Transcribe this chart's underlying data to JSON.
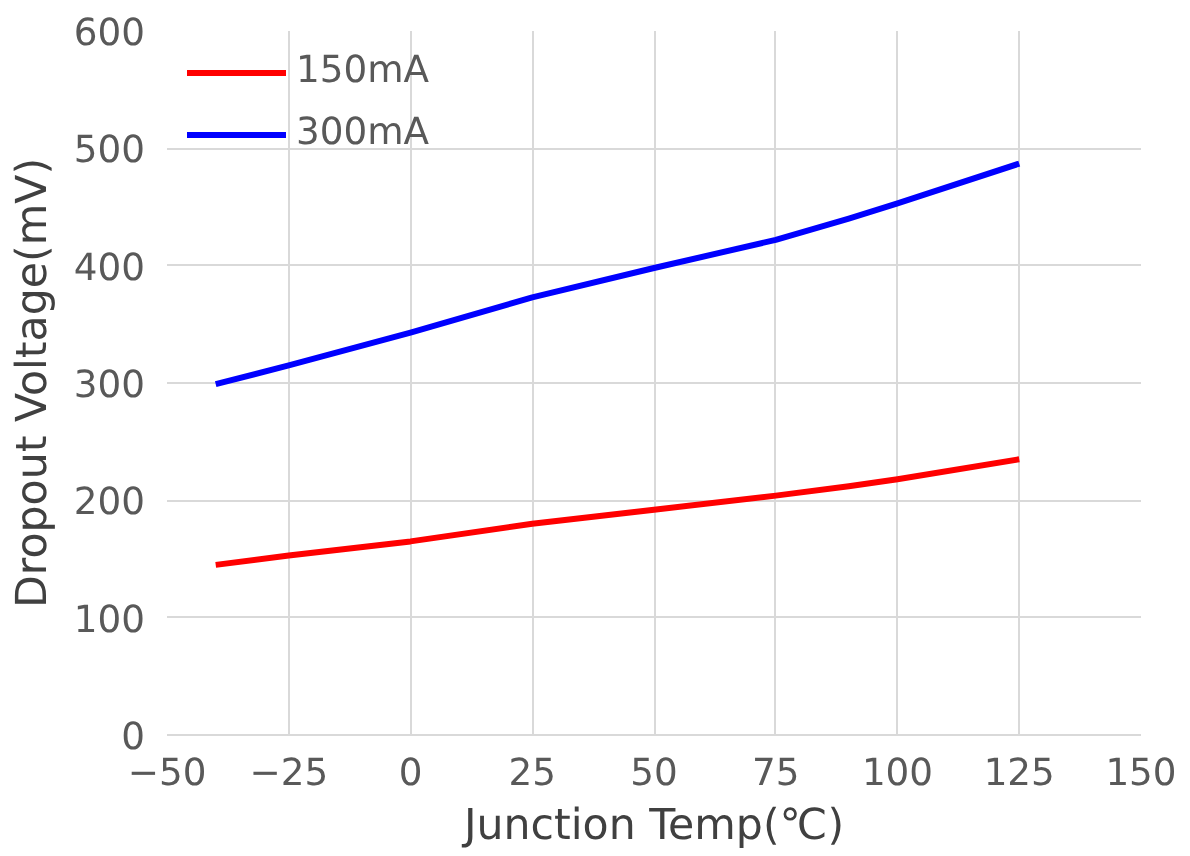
{
  "chart_data": {
    "type": "line",
    "xlabel": "Junction Temp(℃)",
    "ylabel": "Dropout Voltage(mV)",
    "xlim": [
      -50,
      150
    ],
    "xticks": [
      -50,
      -25,
      0,
      25,
      50,
      75,
      100,
      125,
      150
    ],
    "ylim": [
      0,
      600
    ],
    "yticks": [
      0,
      100,
      200,
      300,
      400,
      500,
      600
    ],
    "grid": true,
    "legend": "top left",
    "line_style": "solid",
    "series": [
      {
        "name": "150mA",
        "color": "#ff0000",
        "x": [
          -40,
          -25,
          0,
          25,
          50,
          75,
          90,
          100,
          125
        ],
        "values": [
          145,
          153,
          165,
          180,
          192,
          204,
          212,
          218,
          235
        ]
      },
      {
        "name": "300mA",
        "color": "#0000ff",
        "x": [
          -40,
          -25,
          0,
          25,
          50,
          75,
          90,
          100,
          125
        ],
        "values": [
          299,
          315,
          343,
          373,
          398,
          422,
          440,
          453,
          487
        ]
      }
    ]
  }
}
